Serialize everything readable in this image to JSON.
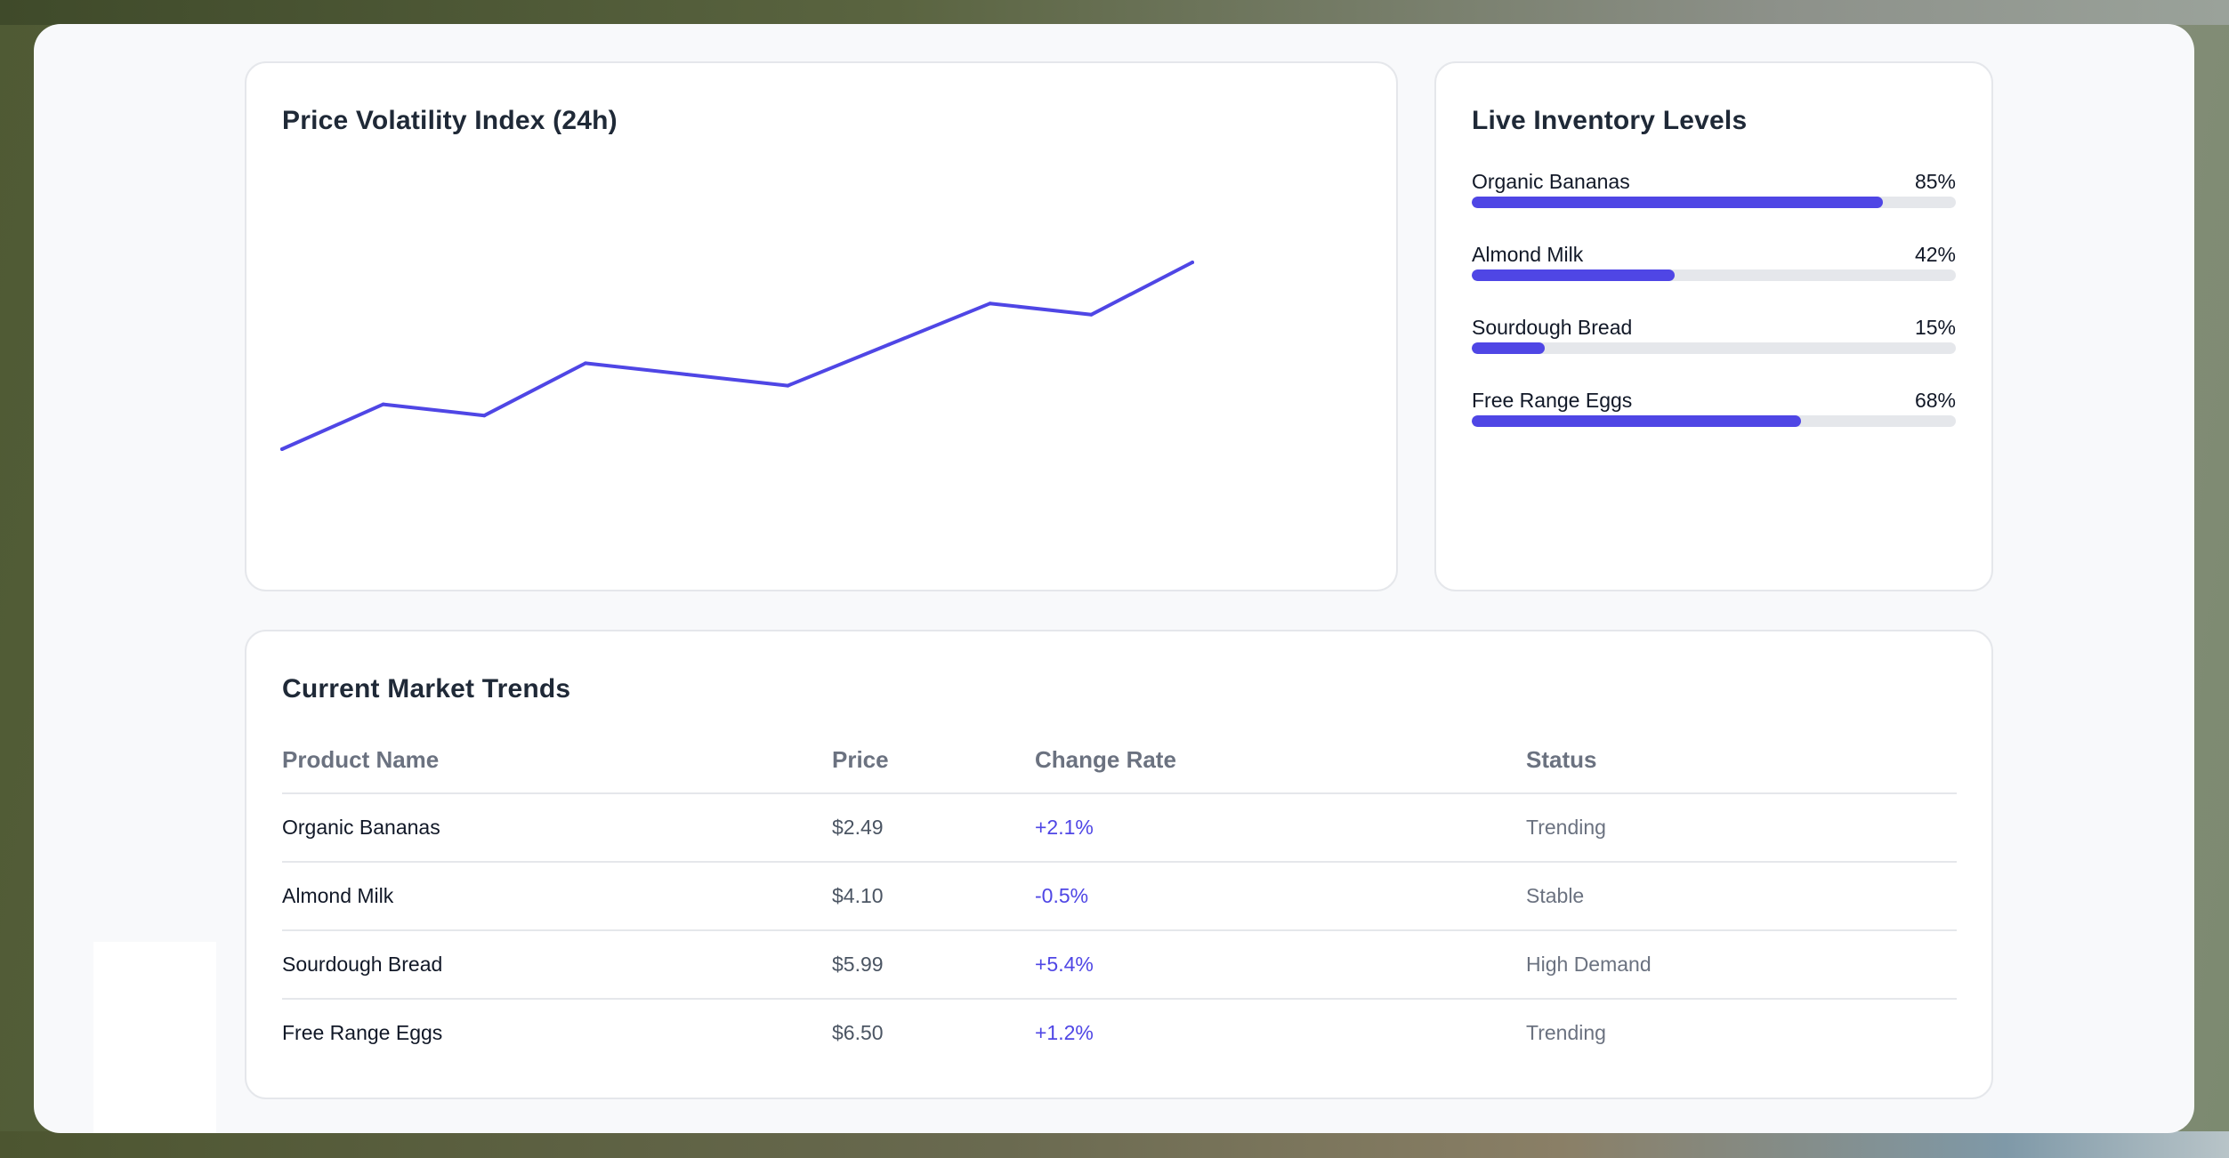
{
  "colors": {
    "accent": "#4f46e5",
    "track": "#e5e7eb",
    "card_bg": "#ffffff",
    "page_bg": "#f8f9fb"
  },
  "volatility": {
    "title": "Price Volatility Index (24h)",
    "chart_data": {
      "type": "line",
      "title": "Price Volatility Index (24h)",
      "xlabel": "",
      "ylabel": "",
      "grid": false,
      "legend": "none",
      "series": [
        {
          "values": [
            30,
            42,
            39,
            53,
            50,
            47,
            58,
            69,
            66,
            80
          ]
        }
      ],
      "ylim": [
        0,
        100
      ]
    }
  },
  "inventory": {
    "title": "Live Inventory Levels",
    "items": [
      {
        "name": "Organic Bananas",
        "percent_label": "85%",
        "level": 0.85
      },
      {
        "name": "Almond Milk",
        "percent_label": "42%",
        "level": 0.42
      },
      {
        "name": "Sourdough Bread",
        "percent_label": "15%",
        "level": 0.15
      },
      {
        "name": "Free Range Eggs",
        "percent_label": "68%",
        "level": 0.68
      }
    ]
  },
  "trends": {
    "title": "Current Market Trends",
    "headers": {
      "product": "Product Name",
      "price": "Price",
      "change": "Change Rate",
      "status": "Status"
    },
    "rows": [
      {
        "product": "Organic Bananas",
        "price": "$2.49",
        "change": "+2.1%",
        "status": "Trending"
      },
      {
        "product": "Almond Milk",
        "price": "$4.10",
        "change": "-0.5%",
        "status": "Stable"
      },
      {
        "product": "Sourdough Bread",
        "price": "$5.99",
        "change": "+5.4%",
        "status": "High Demand"
      },
      {
        "product": "Free Range Eggs",
        "price": "$6.50",
        "change": "+1.2%",
        "status": "Trending"
      }
    ]
  }
}
